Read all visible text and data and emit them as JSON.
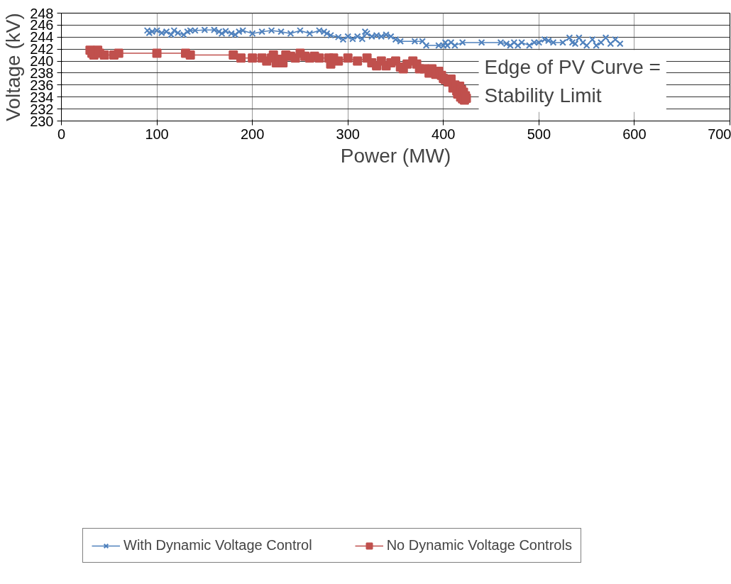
{
  "chart_data": {
    "type": "line",
    "xlabel": "Power (MW)",
    "ylabel": "Voltage (kV)",
    "xlim": [
      0,
      700
    ],
    "xticks": [
      0,
      100,
      200,
      300,
      400,
      500,
      600,
      700
    ],
    "ylim": [
      230,
      248
    ],
    "yticks": [
      230,
      232,
      234,
      236,
      238,
      240,
      242,
      244,
      246,
      248
    ],
    "grid": true,
    "legend": "bottom",
    "line_style": "solid",
    "annotations": [
      "Edge of PV Curve = Stability Limit"
    ],
    "series": [
      {
        "name": "With Dynamic Voltage Control",
        "color": "#4f81bd",
        "marker": "cross",
        "x": [
          90,
          92,
          95,
          100,
          105,
          110,
          115,
          118,
          122,
          128,
          132,
          135,
          140,
          150,
          160,
          165,
          168,
          172,
          178,
          182,
          186,
          190,
          200,
          210,
          220,
          230,
          240,
          250,
          260,
          270,
          275,
          278,
          282,
          290,
          295,
          300,
          305,
          310,
          315,
          318,
          320,
          325,
          330,
          335,
          340,
          345,
          350,
          355,
          370,
          378,
          382,
          395,
          400,
          402,
          404,
          408,
          412,
          420,
          440,
          460,
          466,
          470,
          474,
          478,
          482,
          490,
          495,
          500,
          506,
          510,
          515,
          525,
          532,
          535,
          538,
          542,
          546,
          550,
          556,
          560,
          565,
          570,
          575,
          580,
          585
        ],
        "values": [
          245.1,
          244.7,
          244.9,
          245.1,
          244.7,
          244.9,
          244.4,
          245.1,
          244.7,
          244.4,
          244.9,
          245.1,
          245.1,
          245.2,
          245.2,
          244.9,
          244.6,
          245.0,
          244.6,
          244.4,
          244.9,
          245.1,
          244.6,
          244.9,
          245.1,
          244.9,
          244.6,
          245.1,
          244.6,
          245.1,
          244.9,
          244.6,
          244.3,
          244.0,
          243.6,
          244.1,
          243.7,
          244.1,
          243.7,
          244.9,
          244.6,
          244.1,
          244.3,
          244.1,
          244.4,
          244.1,
          243.6,
          243.3,
          243.3,
          243.3,
          242.6,
          242.6,
          242.6,
          243.1,
          242.6,
          243.1,
          242.6,
          243.1,
          243.1,
          243.1,
          242.9,
          242.6,
          243.1,
          242.6,
          243.1,
          242.6,
          243.1,
          243.1,
          243.6,
          243.4,
          243.1,
          243.1,
          243.9,
          243.1,
          242.9,
          243.9,
          243.1,
          242.6,
          243.6,
          242.6,
          243.1,
          243.9,
          242.9,
          243.6,
          242.9
        ]
      },
      {
        "name": "No Dynamic Voltage Controls",
        "color": "#c0504d",
        "marker": "square",
        "x": [
          30,
          32,
          34,
          38,
          40,
          45,
          55,
          60,
          100,
          130,
          135,
          180,
          188,
          200,
          210,
          215,
          220,
          222,
          225,
          228,
          232,
          235,
          240,
          245,
          250,
          255,
          260,
          265,
          270,
          280,
          282,
          285,
          290,
          300,
          310,
          320,
          325,
          330,
          335,
          340,
          345,
          350,
          355,
          358,
          362,
          368,
          372,
          375,
          380,
          385,
          388,
          392,
          395,
          398,
          400,
          402,
          405,
          408,
          410,
          412,
          414,
          415,
          417,
          418,
          419,
          420,
          421,
          422,
          423,
          424
        ],
        "values": [
          241.8,
          241.3,
          241.0,
          241.8,
          241.3,
          241.0,
          241.0,
          241.3,
          241.3,
          241.3,
          241.0,
          241.0,
          240.5,
          240.5,
          240.5,
          240.0,
          240.5,
          241.0,
          239.7,
          240.3,
          239.7,
          241.0,
          240.8,
          240.5,
          241.3,
          240.8,
          240.5,
          240.8,
          240.5,
          240.5,
          239.5,
          240.5,
          240.0,
          240.5,
          240.0,
          240.5,
          239.7,
          239.2,
          240.0,
          239.2,
          239.7,
          240.0,
          239.0,
          238.7,
          239.5,
          240.0,
          239.5,
          238.7,
          238.7,
          238.0,
          238.7,
          237.8,
          238.3,
          237.6,
          237.1,
          236.9,
          236.5,
          237.0,
          235.5,
          236.0,
          235.0,
          234.5,
          235.8,
          234.0,
          235.2,
          233.7,
          234.8,
          233.5,
          234.2,
          233.8
        ]
      }
    ]
  }
}
